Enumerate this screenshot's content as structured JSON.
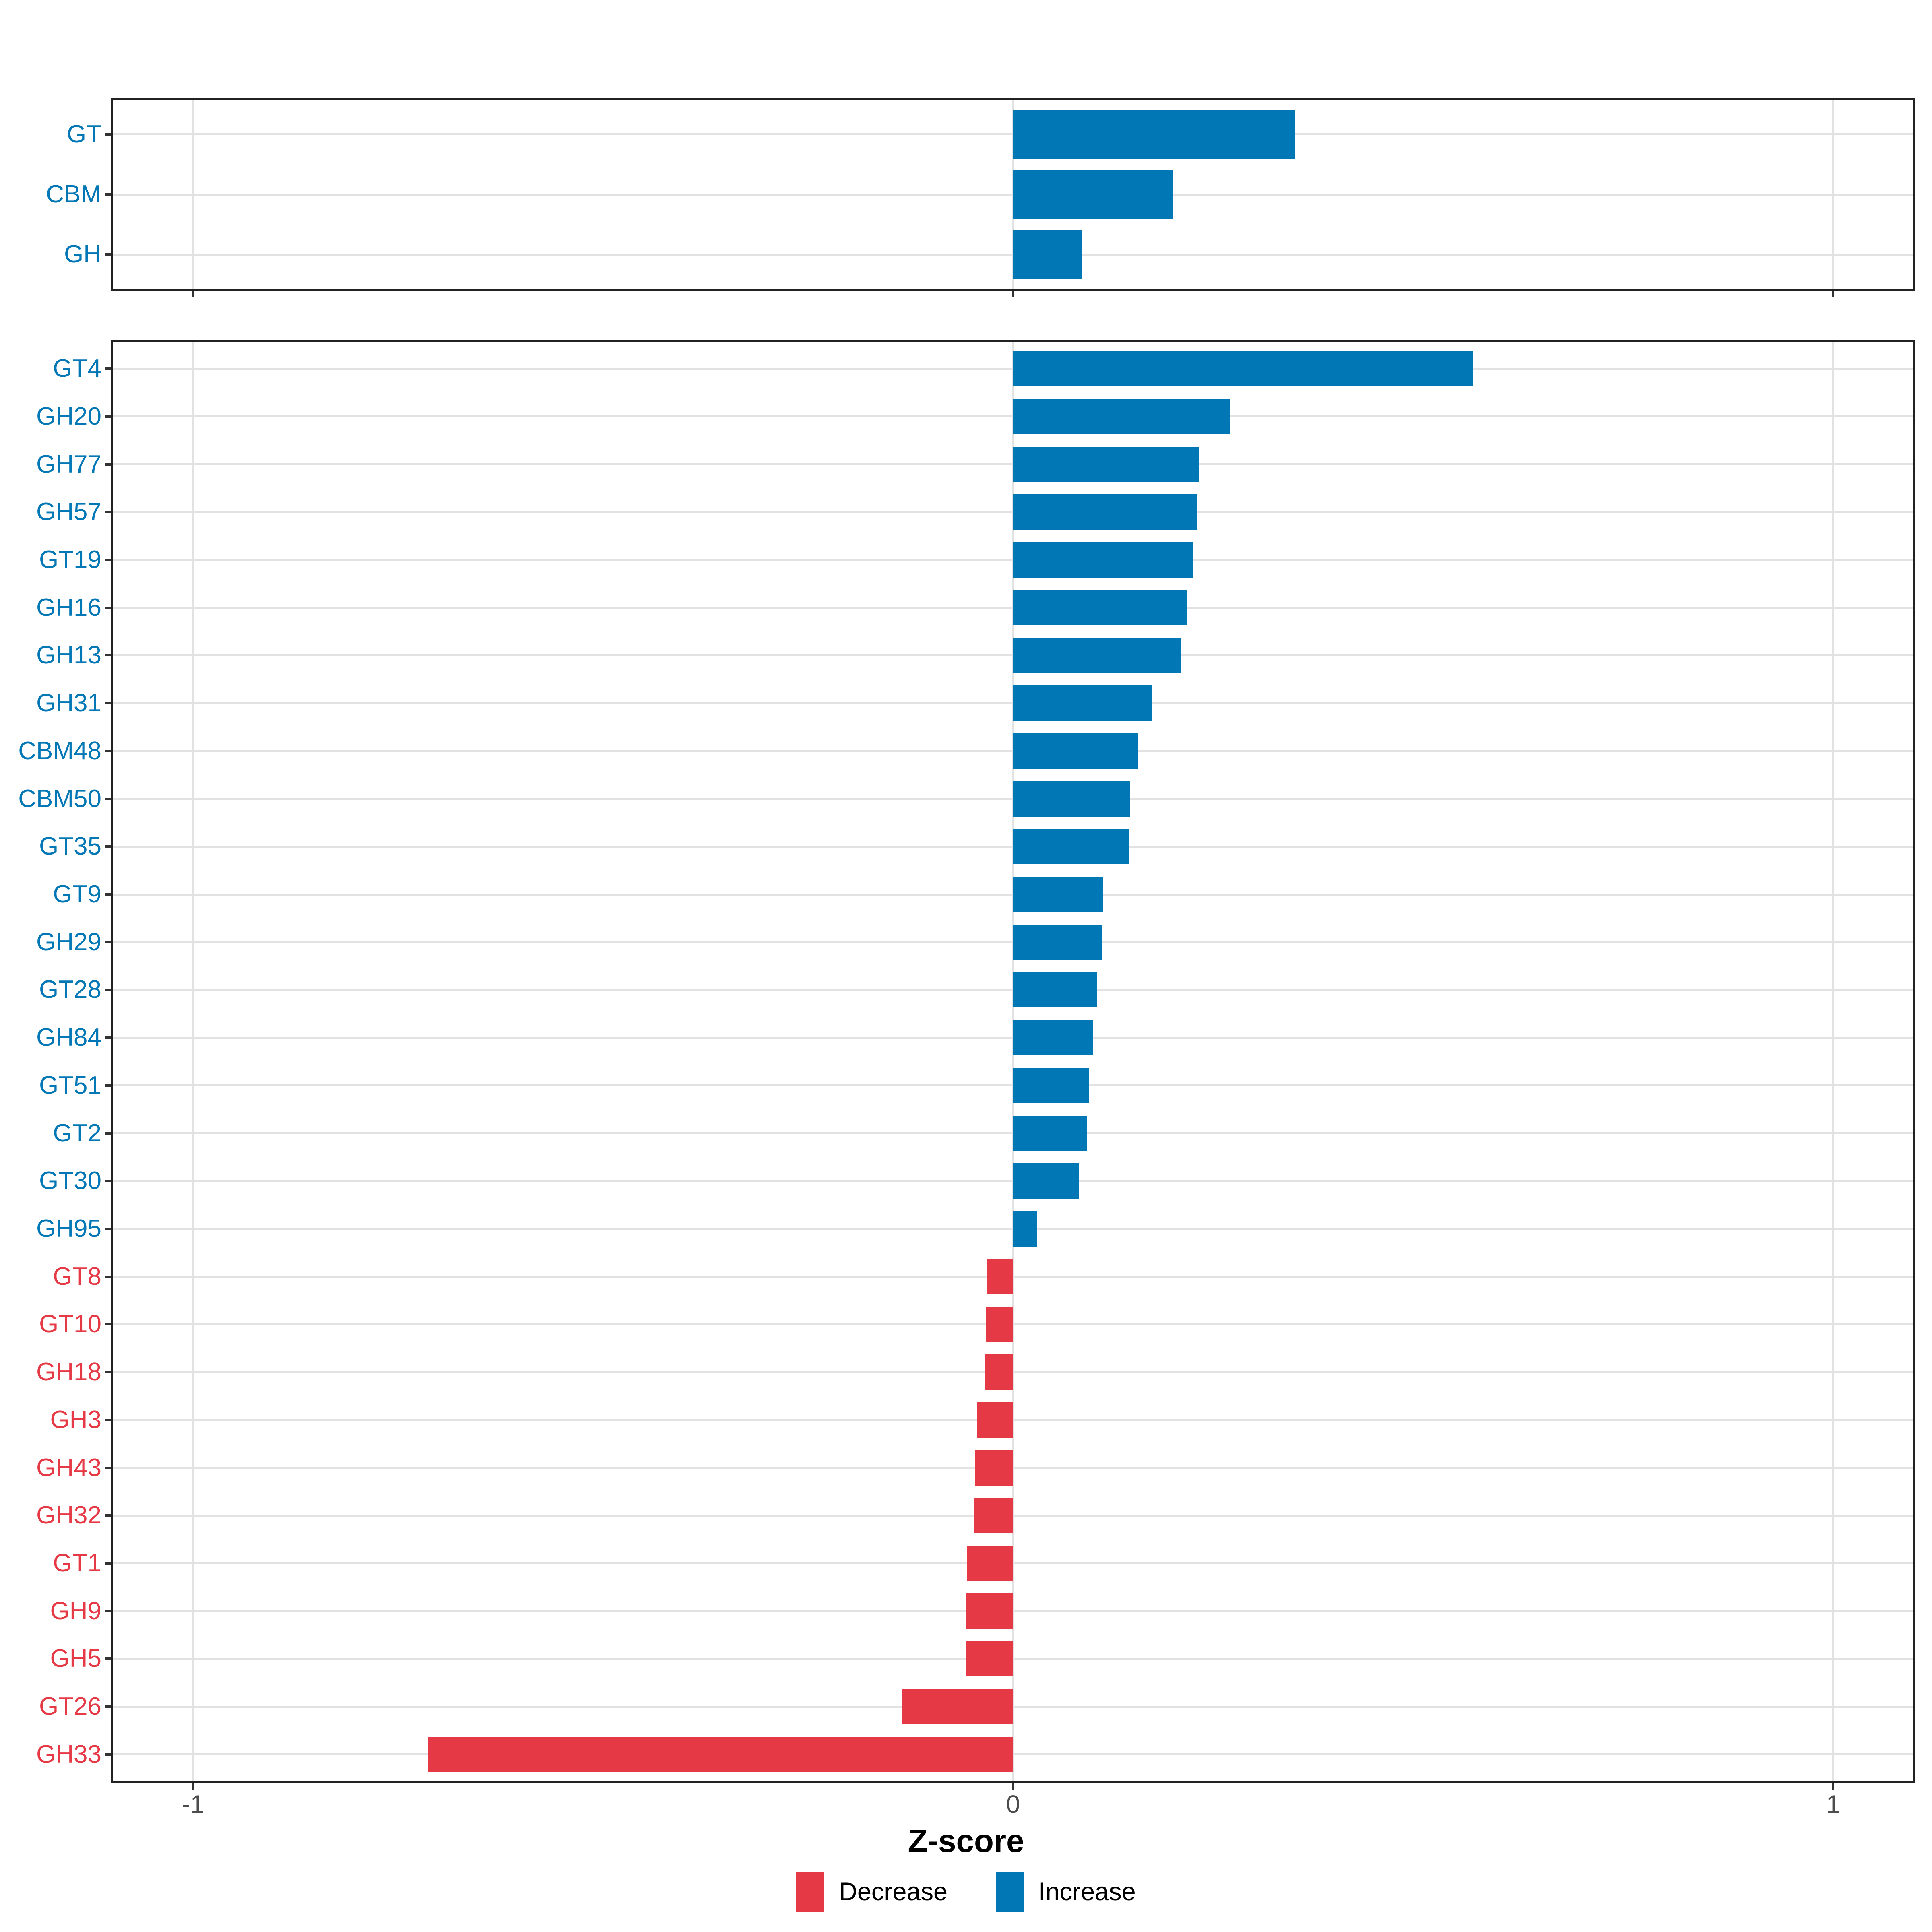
{
  "chart_data": {
    "type": "bar",
    "orientation": "horizontal",
    "title": "",
    "xlabel": "Z-score",
    "ylabel": "",
    "xlim": [
      -1.1,
      1.1
    ],
    "x_ticks": [
      -1,
      0,
      1
    ],
    "x_tick_labels": [
      "-1",
      "0",
      "1"
    ],
    "grid": "major",
    "legend_position": "bottom",
    "legend": [
      {
        "label": "Decrease",
        "color": "#E63946"
      },
      {
        "label": "Increase",
        "color": "#0277B5"
      }
    ],
    "colors": {
      "increase": "#0277B5",
      "decrease": "#E63946",
      "gridline": "#E2E2E2",
      "panel_border": "#222222",
      "tick": "#333333",
      "tick_label": "#4D4D4D",
      "background": "#FFFFFF"
    },
    "panels": [
      {
        "name": "class-summary",
        "categories": [
          "GT",
          "CBM",
          "GH"
        ],
        "values": [
          0.344,
          0.195,
          0.084
        ]
      },
      {
        "name": "family-detail",
        "categories": [
          "GT4",
          "GH20",
          "GH77",
          "GH57",
          "GT19",
          "GH16",
          "GH13",
          "GH31",
          "CBM48",
          "CBM50",
          "GT35",
          "GT9",
          "GH29",
          "GT28",
          "GH84",
          "GT51",
          "GT2",
          "GT30",
          "GH95",
          "GT8",
          "GT10",
          "GH18",
          "GH3",
          "GH43",
          "GH32",
          "GT1",
          "GH9",
          "GH5",
          "GT26",
          "GH33"
        ],
        "values": [
          0.561,
          0.264,
          0.227,
          0.225,
          0.219,
          0.212,
          0.205,
          0.17,
          0.152,
          0.143,
          0.141,
          0.11,
          0.108,
          0.102,
          0.097,
          0.093,
          0.09,
          0.08,
          0.029,
          -0.032,
          -0.033,
          -0.034,
          -0.044,
          -0.046,
          -0.047,
          -0.056,
          -0.057,
          -0.058,
          -0.135,
          -0.713
        ]
      }
    ]
  }
}
